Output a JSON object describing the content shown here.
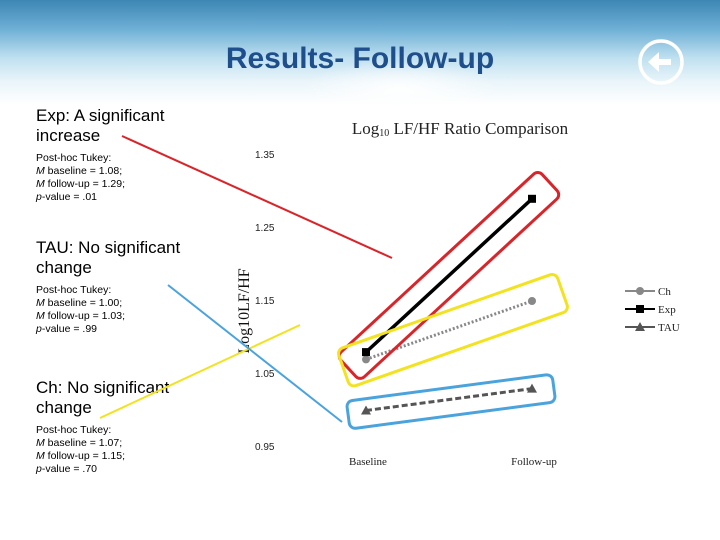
{
  "slide": {
    "title": "Results- Follow-up",
    "nav_icon": "return-arrow-icon"
  },
  "groups": [
    {
      "head": "Exp: A significant increase",
      "test": "Post-hoc Tukey:",
      "baseline": "baseline = 1.08;",
      "followup": "follow-up = 1.29;",
      "pvalue": "-value = .01"
    },
    {
      "head": "TAU: No significant change",
      "test": "Post-hoc Tukey:",
      "baseline": "baseline = 1.00;",
      "followup": "follow-up = 1.03;",
      "pvalue": "-value = .99"
    },
    {
      "head": "Ch: No significant change",
      "test": "Post-hoc Tukey:",
      "baseline": "baseline = 1.07;",
      "followup": "follow-up = 1.15;",
      "pvalue": "-value = .70"
    }
  ],
  "stat_symbols": {
    "mean": "M",
    "p": "p"
  },
  "chart_data": {
    "type": "line",
    "title_main": "Log",
    "title_sub": "10",
    "title_rest": " LF/HF Ratio Comparison",
    "ylabel": "Log10LF/HF",
    "xlabel": "",
    "categories": [
      "Baseline",
      "Follow-up"
    ],
    "ylim": [
      0.95,
      1.35
    ],
    "yticks": [
      0.95,
      1.05,
      1.15,
      1.25,
      1.35
    ],
    "ytick_labels": [
      "0.95",
      "1.05",
      "1.15",
      "1.25",
      "1.35"
    ],
    "grid": false,
    "legend_position": "right",
    "series": [
      {
        "name": "Ch",
        "values": [
          1.07,
          1.15
        ],
        "color": "#888888",
        "marker": "circle",
        "dash": "dotted"
      },
      {
        "name": "Exp",
        "values": [
          1.08,
          1.29
        ],
        "color": "#000000",
        "marker": "square",
        "dash": "solid"
      },
      {
        "name": "TAU",
        "values": [
          1.0,
          1.03
        ],
        "color": "#555555",
        "marker": "triangle",
        "dash": "dashed"
      }
    ],
    "highlight_colors": {
      "exp": "#d9252a",
      "tau": "#4aa3dc",
      "ch": "#f2e21f"
    }
  }
}
